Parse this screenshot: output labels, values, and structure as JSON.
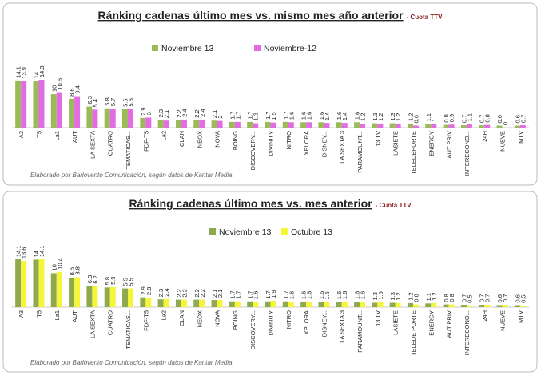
{
  "chart_data": [
    {
      "type": "bar",
      "title": "Ránking cadenas último mes vs. mismo mes año anterior",
      "subtitle": "- Cuota TTV",
      "categories": [
        "A3",
        "T5",
        "La1",
        "AUT",
        "LA SEXTA",
        "CUATRO",
        "TEMATICAS...",
        "FDF-T5",
        "La2",
        "CLAN",
        "NEOX",
        "NOVA",
        "BOING",
        "DISCOVERY...",
        "DIVINITY",
        "NITRO",
        "XPLORA",
        "DISNEY...",
        "LA SEXTA 3",
        "PARAMOUNT...",
        "13 TV",
        "LASIETE",
        "TELEDEPORTE",
        "ENERGY",
        "AUT PRIV",
        "INTERECONO...",
        "24H",
        "NUEVE",
        "MTV"
      ],
      "series": [
        {
          "name": "Noviembre 13",
          "color": "#9bbb59",
          "values": [
            14.1,
            14,
            10,
            8.6,
            6.3,
            5.8,
            5.5,
            2.9,
            2.3,
            2.2,
            2.2,
            2.1,
            1.7,
            1.7,
            1.7,
            1.7,
            1.6,
            1.6,
            1.6,
            1.6,
            1.3,
            1.3,
            1.2,
            1.1,
            0.8,
            0.7,
            0.7,
            0.6,
            0.6
          ]
        },
        {
          "name": "Noviembre-12",
          "color": "#e36ce3",
          "values": [
            13.9,
            14.3,
            10.6,
            9.4,
            5.4,
            5.7,
            5.6,
            3,
            2.1,
            2.4,
            2.4,
            2,
            1.7,
            1.3,
            1.5,
            1.6,
            1.6,
            1.4,
            1.4,
            1.2,
            1.2,
            1.2,
            0.6,
            1,
            0.9,
            1.1,
            0.8,
            0,
            0.7
          ]
        }
      ],
      "source": "Elaborado por Barlovento Comunicación, según datos de Kantar Media"
    },
    {
      "type": "bar",
      "title": "Ránking cadenas último mes vs. mes anterior",
      "subtitle": "- Cuota TTV",
      "categories": [
        "A3",
        "T5",
        "La1",
        "AUT",
        "LA SEXTA",
        "CUATRO",
        "TEMATICAS...",
        "FDF-T5",
        "La2",
        "CLAN",
        "NEOX",
        "NOVA",
        "BOING",
        "DISCOVERY...",
        "DIVINITY",
        "NITRO",
        "XPLORA",
        "DISNEY...",
        "LA SEXTA 3",
        "PARAMOUNT...",
        "13 TV",
        "LASIETE",
        "TELEDE PORTE",
        "ENERGY",
        "AUT PRIV",
        "INTERECONO...",
        "24H",
        "NUEVE",
        "MTV"
      ],
      "series": [
        {
          "name": "Noviembre 13",
          "color": "#8faa4e",
          "values": [
            14.1,
            14,
            10,
            8.6,
            6.3,
            5.8,
            5.5,
            2.9,
            2.3,
            2.2,
            2.2,
            2.1,
            1.7,
            1.7,
            1.7,
            1.7,
            1.6,
            1.6,
            1.6,
            1.6,
            1.3,
            1.3,
            1.2,
            1.1,
            0.8,
            0.7,
            0.7,
            0.6,
            0.6
          ]
        },
        {
          "name": "Octubre 13",
          "color": "#f5f53a",
          "values": [
            13.6,
            14.1,
            10.4,
            8.8,
            6.2,
            5.9,
            5.5,
            2.8,
            2.4,
            2.2,
            2.2,
            2.1,
            1.7,
            1.6,
            1.9,
            1.6,
            1.6,
            1.5,
            1.6,
            1.6,
            1.5,
            1.2,
            0.8,
            1.2,
            0.8,
            0.5,
            0.7,
            0.7,
            0.5
          ]
        }
      ],
      "source": "Elaborado por Barlovento Comunicación, según datos de Kantar Media"
    }
  ]
}
